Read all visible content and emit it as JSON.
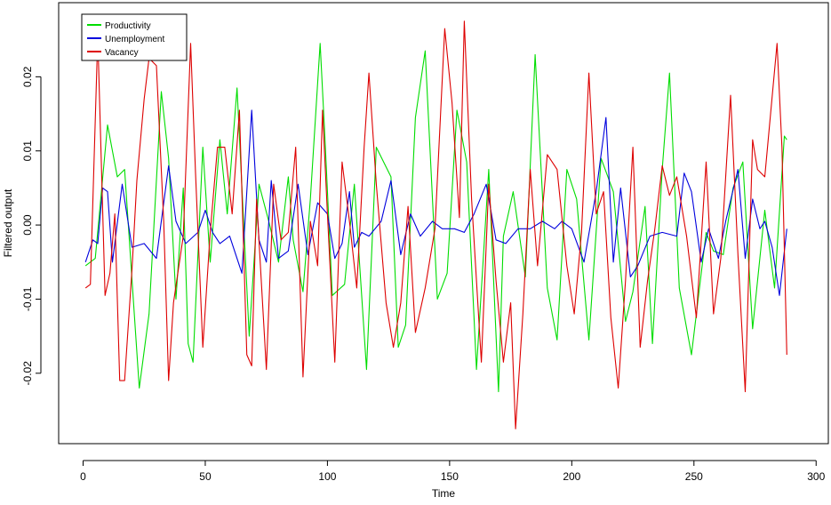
{
  "chart_data": {
    "type": "line",
    "title": "",
    "xlabel": "Time",
    "ylabel": "Filtered output",
    "xlim": [
      -10,
      305
    ],
    "ylim": [
      -0.0295,
      0.03
    ],
    "xticks": [
      0,
      50,
      100,
      150,
      200,
      250,
      300
    ],
    "yticks": [
      -0.02,
      -0.01,
      0.0,
      0.01,
      0.02
    ],
    "ytick_labels": [
      "-0.02",
      "-0.01",
      "0.00",
      "0.01",
      "0.02"
    ],
    "grid": false,
    "legend": {
      "placement": "top-left"
    },
    "series": [
      {
        "name": "Productivity",
        "color": "#00dd00",
        "points": [
          [
            1,
            -0.0055
          ],
          [
            5,
            -0.0045
          ],
          [
            10,
            0.0135
          ],
          [
            14,
            0.0065
          ],
          [
            17,
            0.0075
          ],
          [
            23,
            -0.022
          ],
          [
            27,
            -0.012
          ],
          [
            32,
            0.018
          ],
          [
            35,
            0.009
          ],
          [
            38,
            -0.01
          ],
          [
            41,
            0.005
          ],
          [
            43,
            -0.016
          ],
          [
            45,
            -0.0185
          ],
          [
            49,
            0.0105
          ],
          [
            52,
            -0.005
          ],
          [
            56,
            0.0115
          ],
          [
            59,
            0.0015
          ],
          [
            63,
            0.0185
          ],
          [
            68,
            -0.015
          ],
          [
            72,
            0.0055
          ],
          [
            76,
            0.0005
          ],
          [
            80,
            -0.005
          ],
          [
            84,
            0.0065
          ],
          [
            86,
            -0.002
          ],
          [
            90,
            -0.009
          ],
          [
            93,
            0.0035
          ],
          [
            97,
            0.0245
          ],
          [
            99,
            0.0115
          ],
          [
            102,
            -0.0095
          ],
          [
            107,
            -0.008
          ],
          [
            111,
            0.0055
          ],
          [
            116,
            -0.0195
          ],
          [
            120,
            0.0105
          ],
          [
            126,
            0.0065
          ],
          [
            129,
            -0.0165
          ],
          [
            132,
            -0.0135
          ],
          [
            136,
            0.0145
          ],
          [
            140,
            0.0235
          ],
          [
            145,
            -0.01
          ],
          [
            149,
            -0.0065
          ],
          [
            153,
            0.0155
          ],
          [
            157,
            0.0085
          ],
          [
            161,
            -0.0195
          ],
          [
            166,
            0.0075
          ],
          [
            170,
            -0.0225
          ],
          [
            172,
            -0.0015
          ],
          [
            176,
            0.0045
          ],
          [
            181,
            -0.007
          ],
          [
            185,
            0.023
          ],
          [
            190,
            -0.0085
          ],
          [
            194,
            -0.0155
          ],
          [
            198,
            0.0075
          ],
          [
            202,
            0.0035
          ],
          [
            207,
            -0.0155
          ],
          [
            212,
            0.009
          ],
          [
            217,
            0.0045
          ],
          [
            222,
            -0.013
          ],
          [
            225,
            -0.009
          ],
          [
            230,
            0.0025
          ],
          [
            233,
            -0.016
          ],
          [
            237,
            0.0075
          ],
          [
            240,
            0.0205
          ],
          [
            244,
            -0.0085
          ],
          [
            249,
            -0.0175
          ],
          [
            255,
            -0.001
          ],
          [
            258,
            -0.0035
          ],
          [
            262,
            -0.004
          ],
          [
            266,
            0.005
          ],
          [
            270,
            0.0085
          ],
          [
            274,
            -0.014
          ],
          [
            279,
            0.002
          ],
          [
            283,
            -0.0085
          ],
          [
            287,
            0.012
          ],
          [
            288,
            0.0115
          ]
        ]
      },
      {
        "name": "Unemployment",
        "color": "#0000dd",
        "points": [
          [
            1,
            -0.005
          ],
          [
            4,
            -0.002
          ],
          [
            6,
            -0.0025
          ],
          [
            8,
            0.005
          ],
          [
            10,
            0.0045
          ],
          [
            12,
            -0.005
          ],
          [
            16,
            0.0055
          ],
          [
            20,
            -0.003
          ],
          [
            25,
            -0.0025
          ],
          [
            30,
            -0.0045
          ],
          [
            35,
            0.008
          ],
          [
            38,
            0.0005
          ],
          [
            42,
            -0.0025
          ],
          [
            47,
            -0.001
          ],
          [
            50,
            0.002
          ],
          [
            53,
            -0.001
          ],
          [
            56,
            -0.0025
          ],
          [
            60,
            -0.0015
          ],
          [
            65,
            -0.0065
          ],
          [
            69,
            0.0155
          ],
          [
            72,
            -0.002
          ],
          [
            75,
            -0.005
          ],
          [
            77,
            0.006
          ],
          [
            80,
            -0.0045
          ],
          [
            84,
            -0.0035
          ],
          [
            88,
            0.0055
          ],
          [
            92,
            -0.004
          ],
          [
            96,
            0.003
          ],
          [
            100,
            0.0015
          ],
          [
            103,
            -0.0045
          ],
          [
            106,
            -0.0025
          ],
          [
            109,
            0.0045
          ],
          [
            111,
            -0.003
          ],
          [
            114,
            -0.001
          ],
          [
            117,
            -0.0015
          ],
          [
            122,
            0.0005
          ],
          [
            126,
            0.006
          ],
          [
            130,
            -0.004
          ],
          [
            134,
            0.0015
          ],
          [
            138,
            -0.0015
          ],
          [
            143,
            0.0005
          ],
          [
            147,
            -0.0005
          ],
          [
            152,
            -0.0005
          ],
          [
            156,
            -0.001
          ],
          [
            160,
            0.0015
          ],
          [
            165,
            0.0055
          ],
          [
            169,
            -0.002
          ],
          [
            173,
            -0.0025
          ],
          [
            178,
            -0.0005
          ],
          [
            183,
            -0.0005
          ],
          [
            188,
            0.0005
          ],
          [
            193,
            -0.0005
          ],
          [
            196,
            0.0005
          ],
          [
            200,
            -0.0005
          ],
          [
            205,
            -0.005
          ],
          [
            210,
            0.0045
          ],
          [
            214,
            0.0145
          ],
          [
            217,
            -0.005
          ],
          [
            220,
            0.005
          ],
          [
            224,
            -0.007
          ],
          [
            227,
            -0.0055
          ],
          [
            232,
            -0.0015
          ],
          [
            237,
            -0.001
          ],
          [
            243,
            -0.0015
          ],
          [
            246,
            0.007
          ],
          [
            249,
            0.0045
          ],
          [
            253,
            -0.005
          ],
          [
            256,
            -0.0005
          ],
          [
            260,
            -0.0045
          ],
          [
            263,
            0.0005
          ],
          [
            268,
            0.0075
          ],
          [
            271,
            -0.0045
          ],
          [
            274,
            0.0035
          ],
          [
            277,
            -0.0005
          ],
          [
            279,
            0.0005
          ],
          [
            282,
            -0.003
          ],
          [
            285,
            -0.0095
          ],
          [
            288,
            -0.0005
          ]
        ]
      },
      {
        "name": "Vacancy",
        "color": "#dd0000",
        "points": [
          [
            1,
            -0.0085
          ],
          [
            3,
            -0.008
          ],
          [
            6,
            0.0255
          ],
          [
            9,
            -0.0095
          ],
          [
            11,
            -0.0065
          ],
          [
            13,
            0.0015
          ],
          [
            15,
            -0.021
          ],
          [
            17,
            -0.021
          ],
          [
            20,
            -0.006
          ],
          [
            22,
            0.006
          ],
          [
            25,
            0.017
          ],
          [
            27,
            0.0225
          ],
          [
            30,
            0.0215
          ],
          [
            33,
            0.0005
          ],
          [
            35,
            -0.021
          ],
          [
            37,
            -0.0105
          ],
          [
            41,
            -0.0015
          ],
          [
            44,
            0.0245
          ],
          [
            46,
            0.007
          ],
          [
            49,
            -0.0165
          ],
          [
            52,
            -0.001
          ],
          [
            55,
            0.0105
          ],
          [
            58,
            0.0105
          ],
          [
            61,
            0.0015
          ],
          [
            64,
            0.0155
          ],
          [
            67,
            -0.0175
          ],
          [
            69,
            -0.019
          ],
          [
            71,
            0.0035
          ],
          [
            75,
            -0.0195
          ],
          [
            78,
            0.0055
          ],
          [
            81,
            -0.002
          ],
          [
            84,
            -0.001
          ],
          [
            87,
            0.0105
          ],
          [
            90,
            -0.0205
          ],
          [
            93,
            0.0005
          ],
          [
            96,
            -0.0055
          ],
          [
            98,
            0.0155
          ],
          [
            100,
            0.0015
          ],
          [
            103,
            -0.0185
          ],
          [
            106,
            0.0085
          ],
          [
            109,
            0.0005
          ],
          [
            112,
            -0.0085
          ],
          [
            115,
            0.0105
          ],
          [
            117,
            0.0205
          ],
          [
            120,
            0.0055
          ],
          [
            124,
            -0.0105
          ],
          [
            127,
            -0.0165
          ],
          [
            130,
            -0.0105
          ],
          [
            133,
            0.0025
          ],
          [
            136,
            -0.0145
          ],
          [
            140,
            -0.0085
          ],
          [
            144,
            -0.0005
          ],
          [
            148,
            0.0265
          ],
          [
            151,
            0.0165
          ],
          [
            154,
            0.001
          ],
          [
            156,
            0.0275
          ],
          [
            159,
            0.0035
          ],
          [
            163,
            -0.0185
          ],
          [
            166,
            0.0055
          ],
          [
            169,
            -0.0075
          ],
          [
            172,
            -0.0185
          ],
          [
            175,
            -0.0105
          ],
          [
            177,
            -0.0275
          ],
          [
            180,
            -0.012
          ],
          [
            183,
            0.0075
          ],
          [
            186,
            -0.0055
          ],
          [
            190,
            0.0095
          ],
          [
            194,
            0.0075
          ],
          [
            198,
            -0.0055
          ],
          [
            201,
            -0.012
          ],
          [
            204,
            -0.001
          ],
          [
            207,
            0.0205
          ],
          [
            210,
            0.0015
          ],
          [
            213,
            0.0045
          ],
          [
            216,
            -0.0125
          ],
          [
            219,
            -0.022
          ],
          [
            222,
            -0.0075
          ],
          [
            225,
            0.0105
          ],
          [
            228,
            -0.0165
          ],
          [
            231,
            -0.0075
          ],
          [
            234,
            -0.0005
          ],
          [
            237,
            0.008
          ],
          [
            240,
            0.004
          ],
          [
            243,
            0.0065
          ],
          [
            247,
            -0.0015
          ],
          [
            251,
            -0.0125
          ],
          [
            255,
            0.0085
          ],
          [
            258,
            -0.012
          ],
          [
            261,
            -0.0045
          ],
          [
            265,
            0.0175
          ],
          [
            268,
            -0.004
          ],
          [
            271,
            -0.0225
          ],
          [
            274,
            0.0115
          ],
          [
            276,
            0.0075
          ],
          [
            279,
            0.0065
          ],
          [
            284,
            0.0245
          ],
          [
            286,
            0.0105
          ],
          [
            288,
            -0.0175
          ]
        ]
      }
    ]
  }
}
